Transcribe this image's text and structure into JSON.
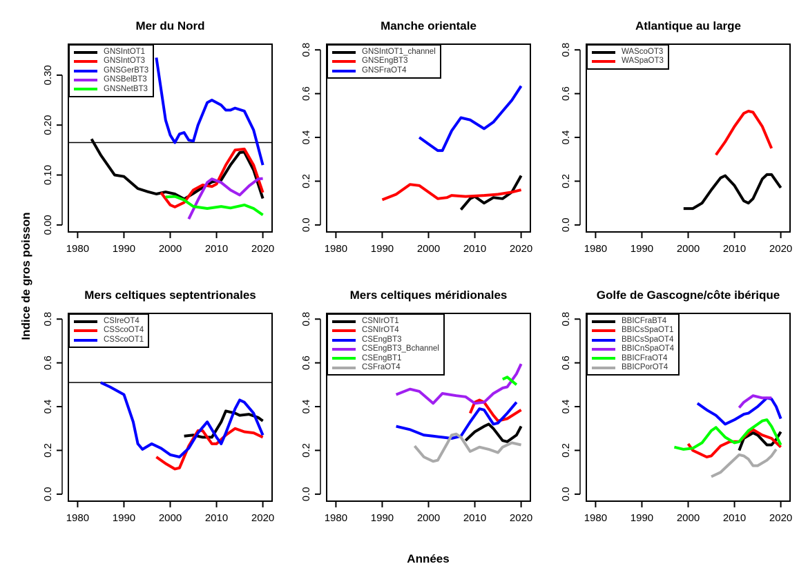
{
  "chart_data": {
    "type": "line",
    "xlabel": "Années",
    "ylabel": "Indice de gros poisson",
    "panels": [
      {
        "title": "Mer du Nord",
        "xlim": [
          1978,
          2022
        ],
        "ylim": [
          -0.014,
          0.362
        ],
        "x_ticks": [
          1980,
          1990,
          2000,
          2010,
          2020
        ],
        "y_ticks": [
          0.0,
          0.1,
          0.2,
          0.3
        ],
        "y_tick_labels": [
          "0.00",
          "0.10",
          "0.20",
          "0.30"
        ],
        "reference_line": 0.165,
        "series": [
          {
            "name": "GNSIntOT1",
            "color": "#000000",
            "x": [
              1983,
              1985,
              1988,
              1990,
              1993,
              1995,
              1997,
              1999,
              2001,
              2003,
              2005,
              2007,
              2009,
              2011,
              2013,
              2015,
              2016,
              2018,
              2020
            ],
            "y": [
              0.172,
              0.14,
              0.1,
              0.097,
              0.073,
              0.067,
              0.062,
              0.066,
              0.062,
              0.052,
              0.063,
              0.075,
              0.086,
              0.09,
              0.12,
              0.145,
              0.146,
              0.11,
              0.053
            ]
          },
          {
            "name": "GNSIntOT3",
            "color": "#ff0000",
            "x": [
              1998,
              2000,
              2001,
              2003,
              2005,
              2007,
              2009,
              2010,
              2012,
              2014,
              2016,
              2018,
              2020
            ],
            "y": [
              0.065,
              0.04,
              0.036,
              0.045,
              0.07,
              0.08,
              0.077,
              0.082,
              0.12,
              0.15,
              0.152,
              0.12,
              0.065
            ]
          },
          {
            "name": "GNSGerBT3",
            "color": "#0000ff",
            "x": [
              1997,
              1999,
              2000,
              2001,
              2002,
              2003,
              2004,
              2005,
              2006,
              2008,
              2009,
              2011,
              2012,
              2013,
              2014,
              2016,
              2018,
              2020
            ],
            "y": [
              0.335,
              0.21,
              0.18,
              0.165,
              0.182,
              0.185,
              0.17,
              0.168,
              0.2,
              0.245,
              0.25,
              0.24,
              0.23,
              0.23,
              0.234,
              0.228,
              0.19,
              0.12
            ]
          },
          {
            "name": "GNSBelBT3",
            "color": "#a020f0",
            "x": [
              2004,
              2006,
              2008,
              2009,
              2011,
              2013,
              2015,
              2017,
              2019,
              2020
            ],
            "y": [
              0.012,
              0.05,
              0.085,
              0.092,
              0.085,
              0.07,
              0.06,
              0.078,
              0.092,
              0.093
            ]
          },
          {
            "name": "GNSNetBT3",
            "color": "#00ff00",
            "x": [
              1999,
              2001,
              2003,
              2005,
              2008,
              2011,
              2013,
              2016,
              2018,
              2020
            ],
            "y": [
              0.056,
              0.057,
              0.05,
              0.037,
              0.033,
              0.037,
              0.034,
              0.04,
              0.033,
              0.02
            ]
          }
        ]
      },
      {
        "title": "Manche orientale",
        "xlim": [
          1978,
          2022
        ],
        "ylim": [
          -0.032,
          0.826
        ],
        "x_ticks": [
          1980,
          1990,
          2000,
          2010,
          2020
        ],
        "y_ticks": [
          0.0,
          0.2,
          0.4,
          0.6,
          0.8
        ],
        "y_tick_labels": [
          "0.0",
          "0.2",
          "0.4",
          "0.6",
          "0.8"
        ],
        "series": [
          {
            "name": "GNSIntOT1_channel",
            "color": "#000000",
            "x": [
              2007,
              2009,
              2010,
              2012,
              2014,
              2016,
              2018,
              2020
            ],
            "y": [
              0.07,
              0.12,
              0.13,
              0.1,
              0.125,
              0.12,
              0.15,
              0.225
            ]
          },
          {
            "name": "GNSEngBT3",
            "color": "#ff0000",
            "x": [
              1990,
              1993,
              1996,
              1998,
              2000,
              2002,
              2004,
              2005,
              2008,
              2012,
              2015,
              2018,
              2020
            ],
            "y": [
              0.115,
              0.14,
              0.185,
              0.18,
              0.15,
              0.12,
              0.125,
              0.135,
              0.13,
              0.135,
              0.14,
              0.15,
              0.16
            ]
          },
          {
            "name": "GNSFraOT4",
            "color": "#0000ff",
            "x": [
              1998,
              2000,
              2002,
              2003,
              2005,
              2007,
              2009,
              2012,
              2014,
              2016,
              2018,
              2020
            ],
            "y": [
              0.4,
              0.37,
              0.34,
              0.34,
              0.43,
              0.49,
              0.48,
              0.44,
              0.47,
              0.52,
              0.57,
              0.635
            ]
          }
        ]
      },
      {
        "title": "Atlantique au large",
        "xlim": [
          1978,
          2022
        ],
        "ylim": [
          -0.032,
          0.826
        ],
        "x_ticks": [
          1980,
          1990,
          2000,
          2010,
          2020
        ],
        "y_ticks": [
          0.0,
          0.2,
          0.4,
          0.6,
          0.8
        ],
        "y_tick_labels": [
          "0.0",
          "0.2",
          "0.4",
          "0.6",
          "0.8"
        ],
        "series": [
          {
            "name": "WAScoOT3",
            "color": "#000000",
            "x": [
              1999,
              2001,
              2003,
              2005,
              2007,
              2008,
              2010,
              2012,
              2013,
              2014,
              2016,
              2017,
              2018,
              2020
            ],
            "y": [
              0.075,
              0.075,
              0.1,
              0.16,
              0.215,
              0.225,
              0.18,
              0.11,
              0.1,
              0.12,
              0.21,
              0.23,
              0.23,
              0.17
            ]
          },
          {
            "name": "WASpaOT3",
            "color": "#ff0000",
            "x": [
              2006,
              2008,
              2010,
              2012,
              2013,
              2014,
              2016,
              2018
            ],
            "y": [
              0.32,
              0.38,
              0.45,
              0.51,
              0.52,
              0.515,
              0.45,
              0.35
            ]
          }
        ]
      },
      {
        "title": "Mers celtiques septentrionales",
        "xlim": [
          1978,
          2022
        ],
        "ylim": [
          -0.032,
          0.826
        ],
        "x_ticks": [
          1980,
          1990,
          2000,
          2010,
          2020
        ],
        "y_ticks": [
          0.0,
          0.2,
          0.4,
          0.6,
          0.8
        ],
        "y_tick_labels": [
          "0.0",
          "0.2",
          "0.4",
          "0.6",
          "0.8"
        ],
        "reference_line": 0.51,
        "series": [
          {
            "name": "CSIreOT4",
            "color": "#000000",
            "x": [
              2003,
              2005,
              2007,
              2009,
              2011,
              2012,
              2014,
              2015,
              2017,
              2019,
              2020
            ],
            "y": [
              0.265,
              0.27,
              0.26,
              0.26,
              0.33,
              0.38,
              0.37,
              0.36,
              0.365,
              0.35,
              0.335
            ]
          },
          {
            "name": "CSScoOT4",
            "color": "#ff0000",
            "x": [
              1997,
              1999,
              2001,
              2002,
              2004,
              2006,
              2007,
              2009,
              2010,
              2012,
              2014,
              2016,
              2018,
              2020
            ],
            "y": [
              0.17,
              0.14,
              0.115,
              0.12,
              0.22,
              0.29,
              0.29,
              0.23,
              0.23,
              0.27,
              0.3,
              0.285,
              0.28,
              0.26
            ]
          },
          {
            "name": "CSScoOT1",
            "color": "#0000ff",
            "x": [
              1985,
              1987,
              1990,
              1992,
              1993,
              1994,
              1996,
              1998,
              2000,
              2002,
              2004,
              2006,
              2008,
              2010,
              2011,
              2012,
              2014,
              2015,
              2016,
              2018,
              2020
            ],
            "y": [
              0.51,
              0.49,
              0.455,
              0.33,
              0.23,
              0.205,
              0.23,
              0.21,
              0.18,
              0.17,
              0.21,
              0.28,
              0.33,
              0.26,
              0.23,
              0.28,
              0.39,
              0.43,
              0.42,
              0.37,
              0.27
            ]
          }
        ]
      },
      {
        "title": "Mers celtiques méridionales",
        "xlim": [
          1978,
          2022
        ],
        "ylim": [
          -0.032,
          0.826
        ],
        "x_ticks": [
          1980,
          1990,
          2000,
          2010,
          2020
        ],
        "y_ticks": [
          0.0,
          0.2,
          0.4,
          0.6,
          0.8
        ],
        "y_tick_labels": [
          "0.0",
          "0.2",
          "0.4",
          "0.6",
          "0.8"
        ],
        "series": [
          {
            "name": "CSNIrOT1",
            "color": "#000000",
            "x": [
              2008,
              2010,
              2012,
              2013,
              2014,
              2016,
              2017,
              2019,
              2020
            ],
            "y": [
              0.245,
              0.285,
              0.31,
              0.32,
              0.3,
              0.245,
              0.24,
              0.27,
              0.31
            ]
          },
          {
            "name": "CSNIrOT4",
            "color": "#ff0000",
            "x": [
              2009,
              2010,
              2011,
              2012,
              2014,
              2015,
              2017,
              2020
            ],
            "y": [
              0.37,
              0.42,
              0.43,
              0.42,
              0.36,
              0.335,
              0.345,
              0.385
            ]
          },
          {
            "name": "CSEngBT3",
            "color": "#0000ff",
            "x": [
              1993,
              1996,
              1999,
              2001,
              2003,
              2005,
              2007,
              2009,
              2011,
              2012,
              2014,
              2015,
              2017,
              2019
            ],
            "y": [
              0.31,
              0.295,
              0.27,
              0.265,
              0.26,
              0.255,
              0.265,
              0.33,
              0.39,
              0.385,
              0.32,
              0.325,
              0.37,
              0.42
            ]
          },
          {
            "name": "CSEngBT3_Bchannel",
            "color": "#a020f0",
            "x": [
              1993,
              1996,
              1998,
              2001,
              2003,
              2006,
              2008,
              2010,
              2012,
              2014,
              2016,
              2017,
              2019,
              2020
            ],
            "y": [
              0.455,
              0.48,
              0.47,
              0.415,
              0.46,
              0.45,
              0.445,
              0.415,
              0.42,
              0.46,
              0.485,
              0.49,
              0.55,
              0.595
            ]
          },
          {
            "name": "CSEngBT1",
            "color": "#00ff00",
            "x": [
              2016,
              2017,
              2019
            ],
            "y": [
              0.525,
              0.535,
              0.5
            ]
          },
          {
            "name": "CSFraOT4",
            "color": "#aaaaaa",
            "x": [
              1997,
              1999,
              2001,
              2002,
              2004,
              2005,
              2006,
              2007,
              2009,
              2011,
              2013,
              2015,
              2016,
              2018,
              2020
            ],
            "y": [
              0.22,
              0.17,
              0.15,
              0.155,
              0.23,
              0.27,
              0.275,
              0.26,
              0.195,
              0.215,
              0.205,
              0.19,
              0.215,
              0.235,
              0.225
            ]
          }
        ]
      },
      {
        "title": "Golfe de Gascogne/côte ibérique",
        "xlim": [
          1978,
          2022
        ],
        "ylim": [
          -0.032,
          0.826
        ],
        "x_ticks": [
          1980,
          1990,
          2000,
          2010,
          2020
        ],
        "y_ticks": [
          0.0,
          0.2,
          0.4,
          0.6,
          0.8
        ],
        "y_tick_labels": [
          "0.0",
          "0.2",
          "0.4",
          "0.6",
          "0.8"
        ],
        "series": [
          {
            "name": "BBICFraBT4",
            "color": "#000000",
            "x": [
              2011,
              2012,
              2014,
              2015,
              2017,
              2018,
              2019,
              2020
            ],
            "y": [
              0.2,
              0.255,
              0.28,
              0.27,
              0.225,
              0.225,
              0.25,
              0.285
            ]
          },
          {
            "name": "BBICsSpaOT1",
            "color": "#ff0000",
            "x": [
              2000,
              2001,
              2004,
              2005,
              2007,
              2009,
              2011,
              2013,
              2014,
              2016,
              2018,
              2020
            ],
            "y": [
              0.23,
              0.2,
              0.17,
              0.175,
              0.22,
              0.24,
              0.24,
              0.28,
              0.295,
              0.27,
              0.255,
              0.215
            ]
          },
          {
            "name": "BBICsSpaOT4",
            "color": "#0000ff",
            "x": [
              2002,
              2004,
              2006,
              2008,
              2010,
              2012,
              2013,
              2015,
              2017,
              2018,
              2019,
              2020
            ],
            "y": [
              0.415,
              0.385,
              0.36,
              0.32,
              0.34,
              0.365,
              0.37,
              0.4,
              0.44,
              0.435,
              0.4,
              0.345
            ]
          },
          {
            "name": "BBICnSpaOT4",
            "color": "#a020f0",
            "x": [
              2011,
              2012,
              2014,
              2016,
              2018
            ],
            "y": [
              0.395,
              0.42,
              0.45,
              0.44,
              0.44
            ]
          },
          {
            "name": "BBICFraOT4",
            "color": "#00ff00",
            "x": [
              1997,
              1999,
              2001,
              2003,
              2005,
              2006,
              2008,
              2010,
              2011,
              2013,
              2016,
              2017,
              2018,
              2020
            ],
            "y": [
              0.215,
              0.205,
              0.21,
              0.235,
              0.29,
              0.305,
              0.26,
              0.235,
              0.24,
              0.29,
              0.335,
              0.34,
              0.31,
              0.225
            ]
          },
          {
            "name": "BBICPorOT4",
            "color": "#aaaaaa",
            "x": [
              2005,
              2007,
              2009,
              2011,
              2012,
              2013,
              2014,
              2015,
              2017,
              2018,
              2019
            ],
            "y": [
              0.08,
              0.1,
              0.14,
              0.18,
              0.175,
              0.16,
              0.13,
              0.13,
              0.155,
              0.175,
              0.205
            ]
          }
        ]
      }
    ]
  }
}
